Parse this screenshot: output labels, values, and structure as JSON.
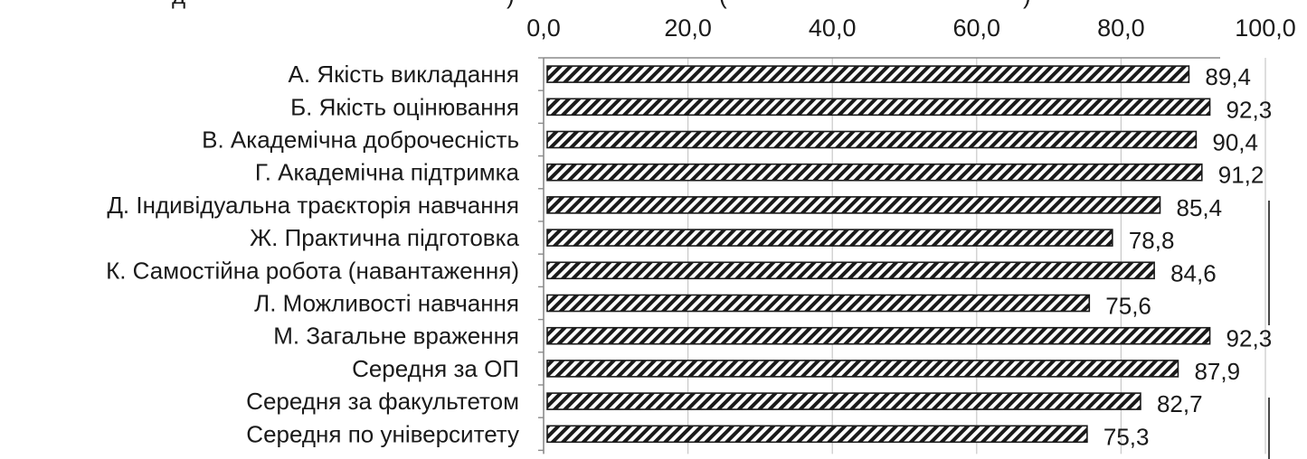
{
  "header_fragment_left": "д",
  "header_fragment_mid": ")",
  "header_fragment_right": "(",
  "header_fragment_end": ")",
  "chart_data": {
    "type": "bar",
    "orientation": "horizontal",
    "title": "",
    "xlabel": "",
    "ylabel": "",
    "xlim": [
      0,
      100
    ],
    "tick_values": [
      0,
      20,
      40,
      60,
      80,
      100
    ],
    "tick_labels": [
      "0,0",
      "20,0",
      "40,0",
      "60,0",
      "80,0",
      "100,0"
    ],
    "axis_position": "top",
    "grid": true,
    "bar_fill": "diagonal-hatch",
    "colors": {
      "bar_stroke": "#1a1a1a",
      "hatch": "#1a1a1a",
      "grid": "#c8c8c8",
      "text": "#1a1a1a"
    },
    "categories": [
      "А. Якість викладання",
      "Б. Якість оцінювання",
      "В. Академічна доброчесність",
      "Г. Академічна підтримка",
      "Д. Індивідуальна траєкторія навчання",
      "Ж. Практична підготовка",
      "К. Самостійна робота (навантаження)",
      "Л. Можливості навчання",
      "М. Загальне враження",
      "Середня за ОП",
      "Середня за факультетом",
      "Середня по університету"
    ],
    "values": [
      89.4,
      92.3,
      90.4,
      91.2,
      85.4,
      78.8,
      84.6,
      75.6,
      92.3,
      87.9,
      82.7,
      75.3
    ],
    "value_labels": [
      "89,4",
      "92,3",
      "90,4",
      "91,2",
      "85,4",
      "78,8",
      "84,6",
      "75,6",
      "92,3",
      "87,9",
      "82,7",
      "75,3"
    ]
  }
}
